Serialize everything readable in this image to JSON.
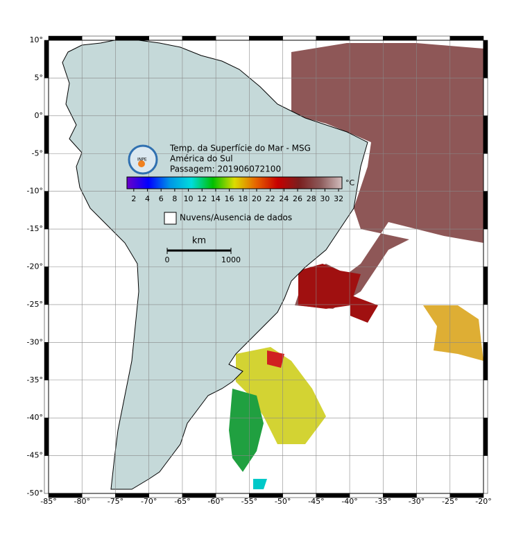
{
  "map": {
    "title": "Temp. da Superfície do Mar - MSG",
    "region": "América do Sul",
    "pass": "Passagem: 201906072100",
    "logo": "INPE",
    "lonlim": [
      -85,
      -20
    ],
    "latlim": [
      10,
      -50
    ],
    "lon_ticks": [
      {
        "value": -85,
        "label": "-85°"
      },
      {
        "value": -80,
        "label": "-80°"
      },
      {
        "value": -75,
        "label": "-75°"
      },
      {
        "value": -70,
        "label": "-70°"
      },
      {
        "value": -65,
        "label": "-65°"
      },
      {
        "value": -60,
        "label": "-60°"
      },
      {
        "value": -55,
        "label": "-55°"
      },
      {
        "value": -50,
        "label": "-50°"
      },
      {
        "value": -45,
        "label": "-45°"
      },
      {
        "value": -40,
        "label": "-40°"
      },
      {
        "value": -35,
        "label": "-35°"
      },
      {
        "value": -30,
        "label": "-30°"
      },
      {
        "value": -25,
        "label": "-25°"
      },
      {
        "value": -20,
        "label": "-20°"
      }
    ],
    "lat_ticks": [
      {
        "value": 10,
        "label": "10°"
      },
      {
        "value": 5,
        "label": "5°"
      },
      {
        "value": 0,
        "label": "0°"
      },
      {
        "value": -5,
        "label": "-5°"
      },
      {
        "value": -10,
        "label": "-10°"
      },
      {
        "value": -15,
        "label": "-15°"
      },
      {
        "value": -20,
        "label": "-20°"
      },
      {
        "value": -25,
        "label": "-25°"
      },
      {
        "value": -30,
        "label": "-30°"
      },
      {
        "value": -35,
        "label": "-35°"
      },
      {
        "value": -40,
        "label": "-40°"
      },
      {
        "value": -45,
        "label": "-45°"
      },
      {
        "value": -50,
        "label": "-50°"
      }
    ],
    "colorbar": {
      "unit": "°C",
      "lim": [
        1,
        32.5
      ],
      "ticks": [
        2,
        4,
        6,
        8,
        10,
        12,
        14,
        16,
        18,
        20,
        22,
        24,
        26,
        28,
        30,
        32
      ],
      "colors": [
        "#6a00c8",
        "#0000ff",
        "#0096e6",
        "#00dcdc",
        "#00c000",
        "#dcdc00",
        "#e66400",
        "#c80000",
        "#7a1e1e",
        "#8c5a5a",
        "#d2bebe"
      ]
    },
    "legend": "Nuvens/Ausencia de dados",
    "scale": {
      "unit": "km",
      "ticks": [
        0,
        1000
      ]
    }
  }
}
